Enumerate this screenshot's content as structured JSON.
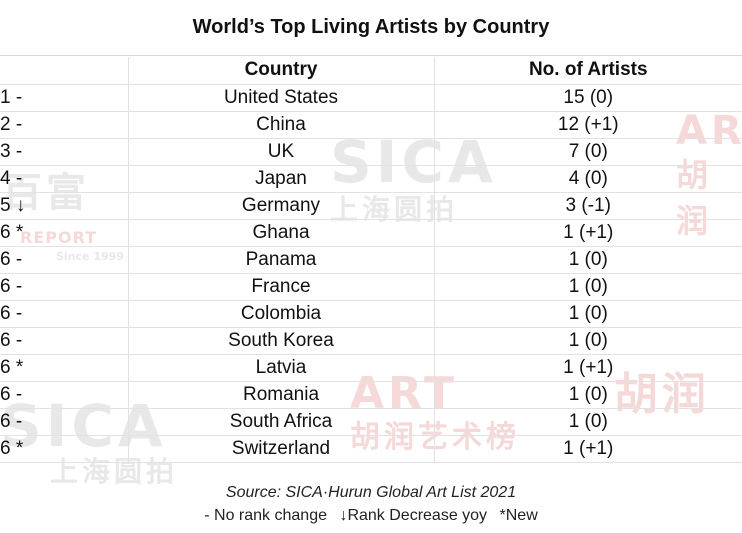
{
  "title": "World’s Top Living Artists by Country",
  "headers": {
    "rank": "",
    "country": "Country",
    "artists": "No. of Artists"
  },
  "rows": [
    {
      "rank": "1 -",
      "country": "United States",
      "artists": "15 (0)"
    },
    {
      "rank": "2 -",
      "country": "China",
      "artists": "12 (+1)"
    },
    {
      "rank": "3 -",
      "country": "UK",
      "artists": "7 (0)"
    },
    {
      "rank": "4 -",
      "country": "Japan",
      "artists": "4 (0)"
    },
    {
      "rank": "5 ↓",
      "country": "Germany",
      "artists": "3 (-1)"
    },
    {
      "rank": "6 *",
      "country": "Ghana",
      "artists": "1 (+1)"
    },
    {
      "rank": "6 -",
      "country": "Panama",
      "artists": "1 (0)"
    },
    {
      "rank": "6 -",
      "country": "France",
      "artists": "1 (0)"
    },
    {
      "rank": "6 -",
      "country": "Colombia",
      "artists": "1 (0)"
    },
    {
      "rank": "6 -",
      "country": "South Korea",
      "artists": "1 (0)"
    },
    {
      "rank": "6 *",
      "country": "Latvia",
      "artists": "1 (+1)"
    },
    {
      "rank": "6 -",
      "country": "Romania",
      "artists": "1 (0)"
    },
    {
      "rank": "6 -",
      "country": "South Africa",
      "artists": "1 (0)"
    },
    {
      "rank": "6 *",
      "country": "Switzerland",
      "artists": "1 (+1)"
    }
  ],
  "source": "Source: SICA·Hurun Global Art List 2021",
  "legend": {
    "no_change": "- No rank change",
    "decrease": "↓Rank Decrease yoy",
    "new": "*New"
  },
  "watermarks": {
    "sica": "SICA",
    "sica_sub": "上海圆拍",
    "hurun_art": "ART",
    "hurun_cn": "胡润",
    "hurun_list": "胡润艺术榜",
    "baifu": "百富",
    "report": "REPORT",
    "since": "Since 1999"
  }
}
